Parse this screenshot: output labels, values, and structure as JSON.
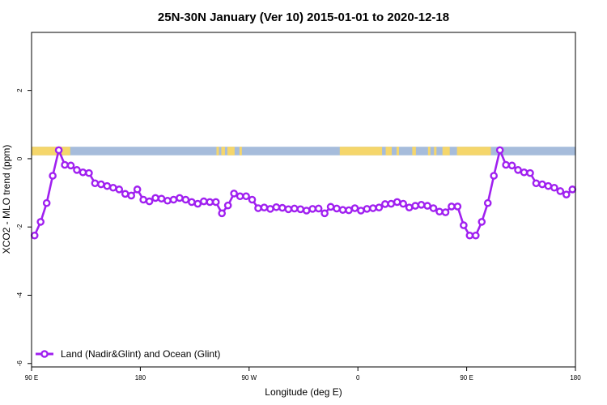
{
  "chart_data": {
    "type": "line",
    "title": "25N-30N January (Ver 10)   2015-01-01 to 2020-12-18",
    "xlabel": "Longitude (deg E)",
    "ylabel": "XCO2 - MLO trend (ppm)",
    "xlim": [
      90,
      540
    ],
    "ylim": [
      -6.1,
      3.7
    ],
    "x_ticks": [
      {
        "value": 90,
        "label": "90 E"
      },
      {
        "value": 180,
        "label": "180"
      },
      {
        "value": 270,
        "label": "90 W"
      },
      {
        "value": 360,
        "label": "0"
      },
      {
        "value": 450,
        "label": "90 E"
      },
      {
        "value": 540,
        "label": "180"
      }
    ],
    "y_ticks": [
      {
        "value": 2,
        "label": "2"
      },
      {
        "value": 0,
        "label": "0"
      },
      {
        "value": -2,
        "label": "-2"
      },
      {
        "value": -4,
        "label": "-4"
      },
      {
        "value": -6,
        "label": "-6"
      }
    ],
    "grid": false,
    "legend_position": "bottom-left",
    "land_ocean_strip": {
      "y_range": [
        0.1,
        0.35
      ],
      "ocean_color": "#a6bcdb",
      "land_color": "#f5d66b",
      "land_segments": [
        [
          90,
          122
        ],
        [
          243,
          245
        ],
        [
          247,
          250
        ],
        [
          252,
          258
        ],
        [
          262,
          264
        ],
        [
          345,
          380
        ],
        [
          383,
          388
        ],
        [
          392,
          394
        ],
        [
          405,
          408
        ],
        [
          418,
          420
        ],
        [
          423,
          425
        ],
        [
          430,
          436
        ],
        [
          442,
          470
        ]
      ]
    },
    "series": [
      {
        "name": "Land (Nadir&Glint) and Ocean (Glint)",
        "color": "#a020f0",
        "x": [
          92.5,
          97.5,
          102.5,
          107.5,
          112.5,
          117.5,
          122.5,
          127.5,
          132.5,
          137.5,
          142.5,
          147.5,
          152.5,
          157.5,
          162.5,
          167.5,
          172.5,
          177.5,
          182.5,
          187.5,
          192.5,
          197.5,
          202.5,
          207.5,
          212.5,
          217.5,
          222.5,
          227.5,
          232.5,
          237.5,
          242.5,
          247.5,
          252.5,
          257.5,
          262.5,
          267.5,
          272.5,
          277.5,
          282.5,
          287.5,
          292.5,
          297.5,
          302.5,
          307.5,
          312.5,
          317.5,
          322.5,
          327.5,
          332.5,
          337.5,
          342.5,
          347.5,
          352.5,
          357.5,
          362.5,
          367.5,
          372.5,
          377.5,
          382.5,
          387.5,
          392.5,
          397.5,
          402.5,
          407.5,
          412.5,
          417.5,
          422.5,
          427.5,
          432.5,
          437.5,
          442.5,
          447.5,
          452.5,
          457.5,
          462.5,
          467.5,
          472.5,
          477.5,
          482.5,
          487.5,
          492.5,
          497.5,
          502.5,
          507.5,
          512.5,
          517.5,
          522.5,
          527.5,
          532.5,
          537.5
        ],
        "y": [
          -2.25,
          -1.85,
          -1.3,
          -0.5,
          0.25,
          -0.18,
          -0.2,
          -0.33,
          -0.4,
          -0.42,
          -0.72,
          -0.75,
          -0.8,
          -0.85,
          -0.9,
          -1.03,
          -1.08,
          -0.9,
          -1.2,
          -1.25,
          -1.15,
          -1.17,
          -1.23,
          -1.2,
          -1.15,
          -1.2,
          -1.27,
          -1.32,
          -1.25,
          -1.27,
          -1.27,
          -1.6,
          -1.37,
          -1.02,
          -1.1,
          -1.1,
          -1.2,
          -1.45,
          -1.43,
          -1.47,
          -1.42,
          -1.44,
          -1.48,
          -1.46,
          -1.48,
          -1.52,
          -1.47,
          -1.46,
          -1.6,
          -1.41,
          -1.46,
          -1.5,
          -1.51,
          -1.45,
          -1.52,
          -1.47,
          -1.45,
          -1.43,
          -1.33,
          -1.32,
          -1.27,
          -1.32,
          -1.43,
          -1.38,
          -1.35,
          -1.38,
          -1.45,
          -1.55,
          -1.57,
          -1.4,
          -1.4,
          -1.95,
          -2.25,
          -2.25,
          -1.85,
          -1.3,
          -0.5,
          0.25,
          -0.18,
          -0.2,
          -0.33,
          -0.4,
          -0.42,
          -0.72,
          -0.75,
          -0.8,
          -0.85,
          -0.95,
          -1.05,
          -0.9
        ]
      }
    ]
  }
}
